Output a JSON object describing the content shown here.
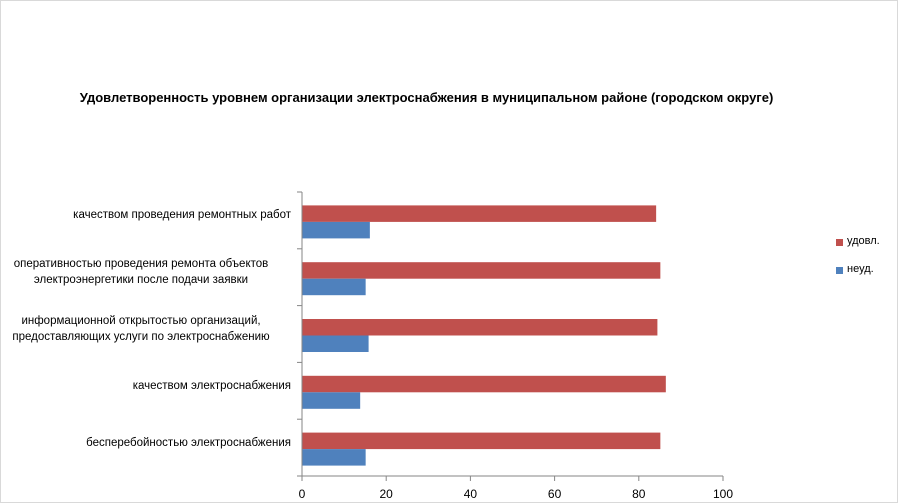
{
  "chart_data": {
    "type": "bar",
    "orientation": "horizontal",
    "title": "Удовлетворенность уровнем организации электроснабжения в муниципальном районе (городском округе)",
    "categories": [
      [
        "качеством проведения ремонтных работ"
      ],
      [
        "оперативностью проведения ремонта объектов",
        "электроэнергетики после подачи заявки"
      ],
      [
        "информационной открытостью организаций,",
        "предоставляющих услуги по электроснабжению"
      ],
      [
        "качеством электроснабжения"
      ],
      [
        "бесперебойностью электроснабжения"
      ]
    ],
    "series": [
      {
        "name": "удовл.",
        "color": "#c0504d",
        "values": [
          84,
          85,
          84.3,
          86.3,
          85
        ]
      },
      {
        "name": "неуд.",
        "color": "#4f81bd",
        "values": [
          16,
          15,
          15.7,
          13.7,
          15
        ]
      }
    ],
    "xlim": [
      0,
      100
    ],
    "x_ticks": [
      0,
      20,
      40,
      60,
      80,
      100
    ],
    "grid": false,
    "legend_position": "right"
  }
}
